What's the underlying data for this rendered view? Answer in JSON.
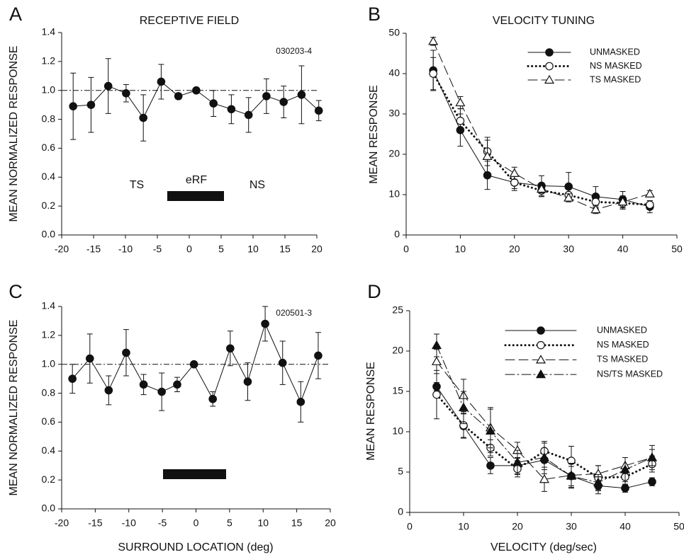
{
  "chart_data": [
    {
      "type": "line",
      "panel": "A",
      "title": "RECEPTIVE FIELD",
      "ylabel": "MEAN NORMALIZED RESPONSE",
      "annotation": "030203-4",
      "labels": [
        "TS",
        "eRF",
        "NS"
      ],
      "hline": 1.0,
      "x": [
        -18.2,
        -15.4,
        -12.7,
        -9.9,
        -7.2,
        -4.4,
        -1.7,
        1.1,
        3.8,
        6.6,
        9.3,
        12.1,
        14.8,
        17.6,
        20.3
      ],
      "series": [
        {
          "color": "#111111",
          "marker": "filled-circle",
          "dash": "solid",
          "values": [
            0.89,
            0.9,
            1.03,
            0.98,
            0.81,
            1.06,
            0.96,
            1.0,
            0.91,
            0.87,
            0.83,
            0.96,
            0.92,
            0.97,
            0.86
          ],
          "errors": [
            0.23,
            0.19,
            0.19,
            0.06,
            0.16,
            0.12,
            0.02,
            0.0,
            0.09,
            0.1,
            0.12,
            0.12,
            0.11,
            0.2,
            0.07
          ]
        }
      ],
      "xlim": [
        -20,
        20
      ],
      "xticks": [
        -20,
        -15,
        -10,
        -5,
        0,
        5,
        10,
        15,
        20
      ],
      "ylim": [
        0,
        1.4
      ],
      "yticks": [
        {
          "value": 0,
          "label": "0.0"
        },
        0.2,
        0.4,
        0.6,
        0.8,
        {
          "value": 1,
          "label": "1.0"
        },
        1.2,
        1.4
      ]
    },
    {
      "type": "line",
      "panel": "B",
      "title": "VELOCITY TUNING",
      "ylabel": "MEAN RESPONSE",
      "x": [
        5,
        10,
        15,
        20,
        25,
        30,
        35,
        40,
        45
      ],
      "series": [
        {
          "name": "UNMASKED",
          "color": "#111111",
          "marker": "filled-circle",
          "dash": "solid",
          "values": [
            40.8,
            26,
            14.8,
            13,
            12.2,
            12,
            9.5,
            8.8,
            7
          ],
          "errors": [
            5,
            4,
            3.5,
            2,
            2.5,
            3.5,
            2.5,
            2,
            1.5
          ]
        },
        {
          "name": "NS MASKED",
          "color": "#111111",
          "marker": "open-circle",
          "dash": "dotted",
          "values": [
            40,
            28.3,
            20.7,
            13,
            11,
            9.9,
            8.2,
            7.9,
            7.5
          ],
          "errors": [
            4,
            3,
            3.5,
            1.5,
            1.5,
            1.5,
            1.5,
            1.5,
            1
          ]
        },
        {
          "name": "TS MASKED",
          "color": "#111111",
          "marker": "open-triangle",
          "dash": "dashed",
          "values": [
            48,
            32.8,
            19.5,
            15.3,
            11.4,
            9.2,
            6.3,
            8.2,
            10.2
          ],
          "errors": [
            1,
            1.5,
            4,
            1.5,
            1,
            1,
            1,
            1.5,
            0.8
          ]
        }
      ],
      "xlim": [
        0,
        50
      ],
      "xticks": [
        0,
        10,
        20,
        30,
        40,
        50
      ],
      "ylim": [
        0,
        50
      ],
      "yticks": [
        0,
        10,
        20,
        30,
        40,
        50
      ]
    },
    {
      "type": "line",
      "panel": "C",
      "ylabel": "MEAN NORMALIZED RESPONSE",
      "xlabel": "SURROUND LOCATION (deg)",
      "annotation": "020501-3",
      "hline": 1.0,
      "x": [
        -18.4,
        -15.8,
        -13.0,
        -10.4,
        -7.8,
        -5.1,
        -2.8,
        -0.3,
        2.5,
        5.1,
        7.7,
        10.3,
        12.9,
        15.6,
        18.2
      ],
      "series": [
        {
          "color": "#111111",
          "marker": "filled-circle",
          "dash": "solid",
          "values": [
            0.9,
            1.04,
            0.82,
            1.08,
            0.86,
            0.81,
            0.86,
            1.0,
            0.76,
            1.11,
            0.88,
            1.28,
            1.01,
            0.74,
            1.06
          ],
          "errors": [
            0.1,
            0.17,
            0.1,
            0.16,
            0.07,
            0.13,
            0.05,
            0.0,
            0.05,
            0.12,
            0.13,
            0.12,
            0.15,
            0.14,
            0.16
          ]
        }
      ],
      "xlim": [
        -20,
        20
      ],
      "xticks": [
        -20,
        -15,
        -10,
        -5,
        0,
        5,
        10,
        15,
        20
      ],
      "ylim": [
        0,
        1.4
      ],
      "yticks": [
        {
          "value": 0,
          "label": "0.0"
        },
        0.2,
        0.4,
        0.6,
        0.8,
        {
          "value": 1,
          "label": "1.0"
        },
        1.2,
        1.4
      ]
    },
    {
      "type": "line",
      "panel": "D",
      "ylabel": "MEAN RESPONSE",
      "xlabel": "VELOCITY (deg/sec)",
      "x": [
        5,
        10,
        15,
        20,
        25,
        30,
        35,
        40,
        45
      ],
      "series": [
        {
          "name": "UNMASKED",
          "color": "#111111",
          "marker": "filled-circle",
          "dash": "solid",
          "values": [
            15.6,
            10.7,
            5.8,
            5.8,
            6.5,
            4.5,
            3.3,
            3.0,
            3.8
          ],
          "errors": [
            0.5,
            1.5,
            1,
            1,
            1.2,
            1.2,
            1,
            0.5,
            0.5
          ]
        },
        {
          "name": "NS MASKED",
          "color": "#111111",
          "marker": "open-circle",
          "dash": "dotted",
          "values": [
            14.6,
            10.8,
            8.0,
            5.4,
            7.6,
            6.4,
            4.3,
            4.4,
            6.0
          ],
          "errors": [
            3,
            1.5,
            1,
            1,
            1,
            1.8,
            1.5,
            1,
            1
          ]
        },
        {
          "name": "TS MASKED",
          "color": "#111111",
          "marker": "open-triangle",
          "dash": "dashed",
          "values": [
            18.7,
            14.5,
            10.5,
            7.7,
            4.1,
            4.6,
            4.8,
            5.8,
            6.8
          ],
          "errors": [
            1.5,
            2,
            2.5,
            1,
            1.5,
            1.5,
            1,
            1,
            1
          ]
        },
        {
          "name": "NS/TS MASKED",
          "color": "#111111",
          "marker": "filled-triangle",
          "dash": "dash-dot",
          "values": [
            20.7,
            13,
            10.1,
            6.2,
            6.8,
            4.5,
            3.7,
            5.3,
            6.8
          ],
          "errors": [
            1.4,
            2,
            2.7,
            1.5,
            2,
            1.5,
            1,
            1.5,
            1.5
          ]
        }
      ],
      "xlim": [
        0,
        50
      ],
      "xticks": [
        0,
        10,
        20,
        30,
        40,
        50
      ],
      "ylim": [
        0,
        25
      ],
      "yticks": [
        0,
        5,
        10,
        15,
        20,
        25
      ]
    }
  ]
}
